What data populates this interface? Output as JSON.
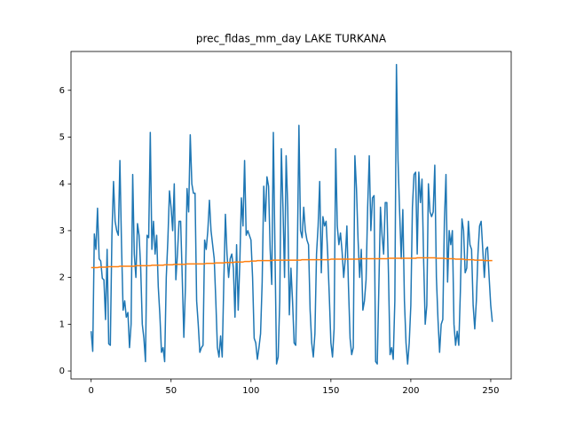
{
  "chart_data": {
    "type": "line",
    "title": "prec_fldas_mm_day LAKE TURKANA",
    "x": [
      0,
      1,
      2,
      3,
      4,
      5,
      6,
      7,
      8,
      9,
      10,
      11,
      12,
      13,
      14,
      15,
      16,
      17,
      18,
      19,
      20,
      21,
      22,
      23,
      24,
      25,
      26,
      27,
      28,
      29,
      30,
      31,
      32,
      33,
      34,
      35,
      36,
      37,
      38,
      39,
      40,
      41,
      42,
      43,
      44,
      45,
      46,
      47,
      48,
      49,
      50,
      51,
      52,
      53,
      54,
      55,
      56,
      57,
      58,
      59,
      60,
      61,
      62,
      63,
      64,
      65,
      66,
      67,
      68,
      69,
      70,
      71,
      72,
      73,
      74,
      75,
      76,
      77,
      78,
      79,
      80,
      81,
      82,
      83,
      84,
      85,
      86,
      87,
      88,
      89,
      90,
      91,
      92,
      93,
      94,
      95,
      96,
      97,
      98,
      99,
      100,
      101,
      102,
      103,
      104,
      105,
      106,
      107,
      108,
      109,
      110,
      111,
      112,
      113,
      114,
      115,
      116,
      117,
      118,
      119,
      120,
      121,
      122,
      123,
      124,
      125,
      126,
      127,
      128,
      129,
      130,
      131,
      132,
      133,
      134,
      135,
      136,
      137,
      138,
      139,
      140,
      141,
      142,
      143,
      144,
      145,
      146,
      147,
      148,
      149,
      150,
      151,
      152,
      153,
      154,
      155,
      156,
      157,
      158,
      159,
      160,
      161,
      162,
      163,
      164,
      165,
      166,
      167,
      168,
      169,
      170,
      171,
      172,
      173,
      174,
      175,
      176,
      177,
      178,
      179,
      180,
      181,
      182,
      183,
      184,
      185,
      186,
      187,
      188,
      189,
      190,
      191,
      192,
      193,
      194,
      195,
      196,
      197,
      198,
      199,
      200,
      201,
      202,
      203,
      204,
      205,
      206,
      207,
      208,
      209,
      210,
      211,
      212,
      213,
      214,
      215,
      216,
      217,
      218,
      219,
      220,
      221,
      222,
      223,
      224,
      225,
      226,
      227,
      228,
      229,
      230,
      231,
      232,
      233,
      234,
      235,
      236,
      237,
      238,
      239,
      240,
      241,
      242,
      243,
      244,
      245,
      246,
      247,
      248,
      249,
      250,
      251
    ],
    "series": [
      {
        "color": "#1f77b4",
        "values": [
          0.85,
          0.42,
          2.93,
          2.6,
          3.48,
          2.4,
          2.35,
          1.98,
          1.95,
          1.1,
          2.6,
          0.58,
          0.55,
          2.9,
          4.05,
          3.2,
          3.0,
          2.9,
          4.5,
          2.7,
          1.3,
          1.5,
          1.15,
          1.25,
          0.5,
          1.0,
          4.2,
          2.5,
          2.0,
          3.15,
          2.9,
          2.2,
          1.0,
          0.7,
          0.2,
          2.9,
          2.85,
          5.1,
          2.6,
          3.2,
          2.5,
          2.9,
          1.8,
          1.2,
          0.4,
          0.5,
          0.2,
          2.0,
          2.8,
          3.85,
          3.5,
          3.0,
          4.0,
          1.95,
          2.5,
          3.2,
          3.2,
          2.0,
          0.72,
          1.8,
          3.9,
          3.4,
          5.05,
          4.0,
          3.8,
          3.8,
          1.5,
          1.0,
          0.4,
          0.5,
          0.55,
          2.8,
          2.6,
          3.0,
          3.65,
          3.0,
          2.7,
          2.4,
          1.5,
          0.5,
          0.3,
          0.75,
          0.3,
          1.9,
          3.35,
          2.5,
          2.0,
          2.4,
          2.5,
          2.2,
          1.15,
          2.7,
          1.3,
          2.3,
          3.7,
          3.1,
          4.5,
          2.9,
          3.0,
          2.9,
          2.8,
          2.0,
          0.7,
          0.6,
          0.25,
          0.5,
          0.8,
          1.9,
          3.95,
          3.2,
          4.15,
          3.95,
          2.6,
          1.85,
          5.1,
          2.6,
          0.15,
          0.3,
          1.5,
          4.75,
          3.5,
          2.0,
          4.6,
          3.5,
          1.2,
          2.2,
          1.5,
          0.6,
          0.55,
          2.5,
          5.25,
          3.0,
          2.85,
          3.5,
          3.0,
          2.8,
          2.7,
          1.3,
          0.6,
          0.3,
          0.8,
          2.5,
          3.1,
          4.05,
          2.1,
          3.3,
          3.1,
          3.2,
          2.5,
          1.6,
          0.6,
          0.3,
          0.9,
          4.75,
          3.1,
          2.7,
          2.95,
          2.55,
          2.0,
          2.4,
          3.1,
          1.8,
          0.7,
          0.35,
          0.5,
          4.6,
          3.9,
          2.8,
          2.0,
          2.6,
          1.3,
          1.5,
          1.95,
          3.5,
          4.6,
          3.0,
          3.7,
          3.75,
          0.2,
          0.15,
          1.8,
          3.5,
          2.9,
          2.5,
          3.6,
          3.6,
          2.1,
          0.35,
          0.5,
          0.25,
          1.5,
          6.55,
          4.5,
          3.4,
          2.4,
          3.45,
          1.5,
          0.6,
          0.15,
          0.6,
          1.4,
          3.5,
          4.2,
          4.25,
          2.5,
          4.25,
          3.6,
          4.1,
          2.4,
          1.0,
          1.4,
          4.0,
          3.4,
          3.3,
          3.4,
          4.4,
          2.0,
          1.1,
          0.4,
          1.0,
          1.1,
          3.2,
          4.2,
          1.9,
          3.0,
          2.7,
          3.0,
          1.0,
          0.55,
          0.85,
          0.55,
          1.7,
          3.25,
          3.0,
          2.1,
          2.2,
          3.2,
          2.7,
          2.6,
          1.4,
          0.9,
          1.5,
          2.5,
          3.1,
          3.2,
          2.6,
          2.0,
          2.6,
          2.65,
          2.0,
          1.4,
          1.05
        ]
      },
      {
        "color": "#ff7f0e",
        "values": [
          2.21,
          2.21,
          2.21,
          2.21,
          2.21,
          2.22,
          2.22,
          2.22,
          2.22,
          2.22,
          2.22,
          2.23,
          2.23,
          2.23,
          2.23,
          2.23,
          2.23,
          2.23,
          2.24,
          2.24,
          2.24,
          2.24,
          2.24,
          2.24,
          2.24,
          2.24,
          2.24,
          2.24,
          2.25,
          2.25,
          2.25,
          2.25,
          2.25,
          2.25,
          2.25,
          2.25,
          2.25,
          2.25,
          2.26,
          2.26,
          2.26,
          2.26,
          2.26,
          2.26,
          2.26,
          2.26,
          2.27,
          2.27,
          2.27,
          2.27,
          2.27,
          2.27,
          2.28,
          2.28,
          2.28,
          2.28,
          2.28,
          2.28,
          2.28,
          2.28,
          2.29,
          2.29,
          2.29,
          2.29,
          2.29,
          2.29,
          2.29,
          2.29,
          2.29,
          2.29,
          2.29,
          2.29,
          2.3,
          2.3,
          2.3,
          2.3,
          2.3,
          2.3,
          2.31,
          2.31,
          2.31,
          2.31,
          2.31,
          2.31,
          2.32,
          2.32,
          2.32,
          2.32,
          2.32,
          2.32,
          2.33,
          2.33,
          2.33,
          2.33,
          2.33,
          2.33,
          2.34,
          2.34,
          2.34,
          2.34,
          2.35,
          2.35,
          2.35,
          2.35,
          2.36,
          2.36,
          2.36,
          2.36,
          2.36,
          2.36,
          2.36,
          2.36,
          2.36,
          2.36,
          2.37,
          2.37,
          2.37,
          2.37,
          2.37,
          2.37,
          2.37,
          2.37,
          2.37,
          2.37,
          2.37,
          2.37,
          2.37,
          2.37,
          2.37,
          2.37,
          2.37,
          2.37,
          2.38,
          2.38,
          2.38,
          2.38,
          2.38,
          2.38,
          2.38,
          2.38,
          2.38,
          2.38,
          2.38,
          2.38,
          2.38,
          2.38,
          2.38,
          2.38,
          2.38,
          2.38,
          2.39,
          2.39,
          2.39,
          2.39,
          2.39,
          2.39,
          2.39,
          2.39,
          2.39,
          2.39,
          2.39,
          2.39,
          2.39,
          2.39,
          2.39,
          2.39,
          2.39,
          2.39,
          2.4,
          2.4,
          2.4,
          2.4,
          2.4,
          2.4,
          2.4,
          2.4,
          2.4,
          2.4,
          2.4,
          2.4,
          2.4,
          2.4,
          2.4,
          2.4,
          2.4,
          2.4,
          2.41,
          2.41,
          2.41,
          2.41,
          2.41,
          2.41,
          2.41,
          2.41,
          2.41,
          2.41,
          2.41,
          2.41,
          2.41,
          2.41,
          2.41,
          2.41,
          2.41,
          2.41,
          2.42,
          2.42,
          2.42,
          2.42,
          2.42,
          2.42,
          2.42,
          2.42,
          2.42,
          2.42,
          2.42,
          2.42,
          2.41,
          2.41,
          2.41,
          2.41,
          2.41,
          2.41,
          2.4,
          2.4,
          2.4,
          2.4,
          2.4,
          2.4,
          2.39,
          2.39,
          2.39,
          2.39,
          2.39,
          2.39,
          2.38,
          2.38,
          2.38,
          2.38,
          2.38,
          2.38,
          2.37,
          2.37,
          2.37,
          2.37,
          2.37,
          2.37,
          2.36,
          2.36,
          2.36,
          2.36,
          2.36,
          2.36
        ]
      }
    ],
    "xlim": [
      -12.6,
      262.8
    ],
    "ylim": [
      -0.17,
      6.83
    ],
    "xticks": [
      0,
      50,
      100,
      150,
      200,
      250
    ],
    "yticks": [
      0,
      1,
      2,
      3,
      4,
      5,
      6
    ]
  }
}
